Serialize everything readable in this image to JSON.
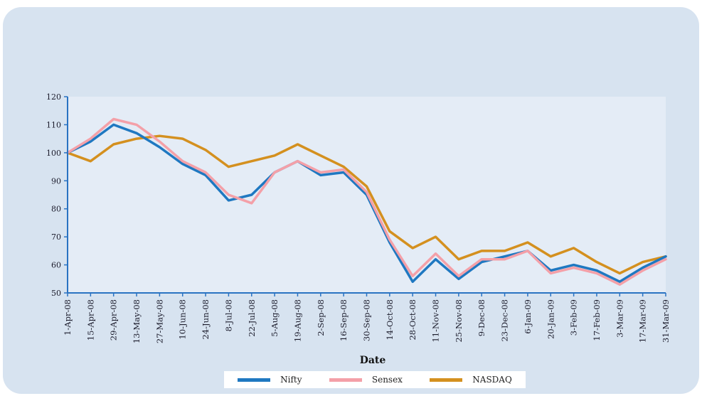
{
  "chart_data": {
    "type": "line",
    "title": "",
    "xlabel": "Date",
    "ylabel": "",
    "ylim": [
      50,
      120
    ],
    "yticks": [
      "50",
      "60",
      "70",
      "80",
      "90",
      "100",
      "110",
      "120"
    ],
    "grid": false,
    "legend_position": "bottom",
    "x": [
      "1-Apr-08",
      "15-Apr-08",
      "29-Apr-08",
      "13-May-08",
      "27-May-08",
      "10-Jun-08",
      "24-Jun-08",
      "8-Jul-08",
      "22-Jul-08",
      "5-Aug-08",
      "19-Aug-08",
      "2-Sep-08",
      "16-Sep-08",
      "30-Sep-08",
      "14-Oct-08",
      "28-Oct-08",
      "11-Nov-08",
      "25-Nov-08",
      "9-Dec-08",
      "23-Dec-08",
      "6-Jan-09",
      "20-Jan-09",
      "3-Feb-09",
      "17-Feb-09",
      "3-Mar-09",
      "17-Mar-09",
      "31-Mar-09"
    ],
    "series": [
      {
        "name": "Nifty",
        "color": "#1f78c1",
        "values": [
          100,
          104,
          110,
          107,
          102,
          96,
          92,
          83,
          85,
          93,
          97,
          92,
          93,
          85,
          68,
          54,
          62,
          55,
          61,
          63,
          65,
          58,
          60,
          58,
          54,
          59,
          63
        ]
      },
      {
        "name": "Sensex",
        "color": "#f4a0a8",
        "values": [
          100,
          105,
          112,
          110,
          104,
          97,
          93,
          85,
          82,
          93,
          97,
          93,
          94,
          86,
          69,
          56,
          64,
          56,
          62,
          62,
          65,
          57,
          59,
          57,
          53,
          58,
          62
        ]
      },
      {
        "name": "NASDAQ",
        "color": "#d4901f",
        "values": [
          100,
          97,
          103,
          105,
          106,
          105,
          101,
          95,
          97,
          99,
          103,
          99,
          95,
          88,
          72,
          66,
          70,
          62,
          65,
          65,
          68,
          63,
          66,
          61,
          57,
          61,
          63
        ]
      }
    ]
  }
}
